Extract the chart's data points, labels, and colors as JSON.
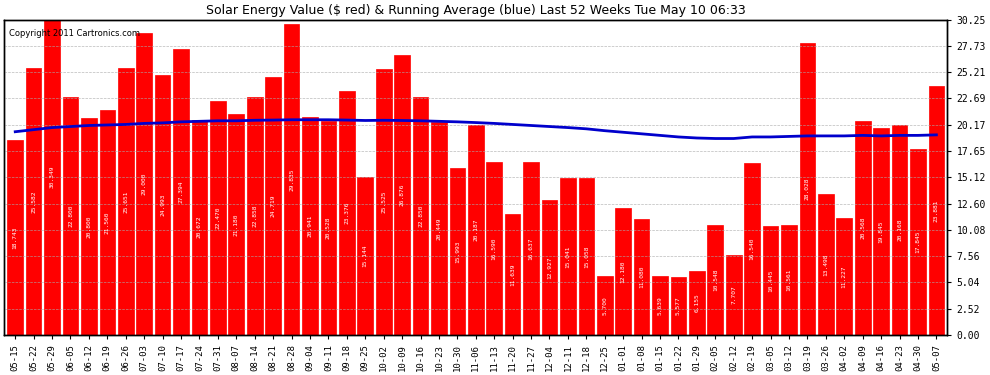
{
  "title": "Solar Energy Value ($ red) & Running Average (blue) Last 52 Weeks Tue May 10 06:33",
  "copyright": "Copyright 2011 Cartronics.com",
  "bar_color": "#FF0000",
  "line_color": "#0000CC",
  "background_color": "#FFFFFF",
  "grid_color": "#AAAAAA",
  "ylim": [
    0,
    30.25
  ],
  "yticks": [
    0.0,
    2.52,
    5.04,
    7.56,
    10.08,
    12.6,
    15.12,
    17.65,
    20.17,
    22.69,
    25.21,
    27.73,
    30.25
  ],
  "categories": [
    "05-15",
    "05-22",
    "05-29",
    "06-05",
    "06-12",
    "06-19",
    "06-26",
    "07-03",
    "07-10",
    "07-17",
    "07-24",
    "07-31",
    "08-07",
    "08-14",
    "08-21",
    "08-28",
    "09-04",
    "09-11",
    "09-18",
    "09-25",
    "10-02",
    "10-09",
    "10-16",
    "10-23",
    "10-30",
    "11-06",
    "11-13",
    "11-20",
    "11-27",
    "12-04",
    "12-11",
    "12-18",
    "12-25",
    "01-01",
    "01-08",
    "01-15",
    "01-22",
    "01-29",
    "02-05",
    "02-12",
    "02-19",
    "03-05",
    "03-12",
    "03-19",
    "03-26",
    "04-02",
    "04-09",
    "04-16",
    "04-23",
    "04-30",
    "05-07"
  ],
  "values": [
    18.743,
    25.582,
    30.349,
    22.8,
    20.8,
    21.56,
    25.651,
    29.0,
    24.993,
    27.394,
    20.672,
    22.47,
    21.18,
    22.858,
    24.719,
    29.835,
    20.941,
    20.528,
    23.376,
    15.144,
    25.525,
    26.876,
    22.85,
    20.449,
    15.993,
    20.187,
    16.59,
    11.639,
    16.637,
    12.927,
    15.041,
    15.058,
    5.7,
    12.18,
    11.08,
    5.639,
    5.577,
    6.155,
    10.548,
    7.707,
    16.54,
    10.445,
    10.561,
    28.028,
    13.498,
    11.227,
    20.568,
    19.845,
    20.168,
    17.845,
    23.881
  ],
  "running_avg": [
    19.5,
    19.7,
    19.9,
    20.0,
    20.1,
    20.15,
    20.2,
    20.3,
    20.35,
    20.45,
    20.5,
    20.55,
    20.55,
    20.6,
    20.62,
    20.65,
    20.65,
    20.65,
    20.62,
    20.58,
    20.6,
    20.58,
    20.55,
    20.5,
    20.45,
    20.38,
    20.3,
    20.2,
    20.1,
    20.0,
    19.9,
    19.78,
    19.6,
    19.45,
    19.3,
    19.15,
    19.0,
    18.9,
    18.85,
    18.85,
    19.0,
    19.0,
    19.05,
    19.1,
    19.1,
    19.1,
    19.15,
    19.1,
    19.15,
    19.15,
    19.2
  ]
}
